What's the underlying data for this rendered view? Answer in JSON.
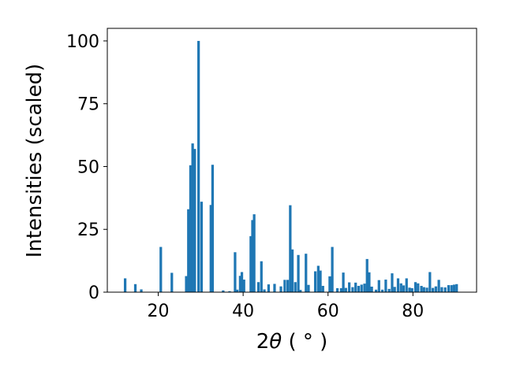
{
  "chart_data": {
    "type": "bar",
    "xlabel_main": "2",
    "xlabel_theta": "θ",
    "xlabel_unit": " ( ° )",
    "ylabel": "Intensities (scaled)",
    "xlim": [
      8,
      95
    ],
    "ylim": [
      0,
      105
    ],
    "xticks": [
      20,
      40,
      60,
      80
    ],
    "yticks": [
      0,
      25,
      50,
      75,
      100
    ],
    "grid": false,
    "bar_width": 0.6,
    "color": "#1f77b4",
    "x": [
      12.2,
      14.6,
      16.0,
      20.6,
      23.2,
      26.6,
      27.1,
      27.6,
      28.1,
      28.6,
      29.5,
      30.2,
      32.4,
      32.8,
      35.3,
      36.8,
      38.1,
      38.6,
      39.3,
      39.7,
      40.2,
      41.8,
      42.2,
      42.6,
      43.6,
      44.3,
      45.0,
      46.0,
      47.4,
      48.9,
      49.8,
      50.5,
      51.1,
      51.6,
      52.3,
      53.0,
      53.5,
      54.8,
      55.4,
      57.0,
      57.7,
      58.2,
      58.8,
      60.4,
      61.0,
      62.2,
      63.1,
      63.6,
      64.2,
      65.0,
      65.8,
      66.5,
      67.2,
      67.9,
      68.6,
      69.2,
      69.7,
      70.3,
      71.3,
      72.0,
      72.8,
      73.6,
      74.4,
      75.1,
      75.7,
      76.5,
      77.2,
      77.8,
      78.5,
      79.2,
      79.8,
      80.6,
      81.2,
      82.0,
      82.6,
      83.3,
      84.0,
      84.7,
      85.4,
      86.1,
      86.8,
      87.6,
      88.4,
      89.1,
      89.7,
      90.3
    ],
    "values": [
      5.5,
      3.2,
      1.1,
      18.0,
      7.7,
      6.4,
      33.0,
      50.5,
      59.2,
      57.0,
      100.0,
      36.0,
      34.7,
      50.7,
      0.7,
      0.4,
      15.9,
      1.0,
      6.5,
      8.0,
      5.0,
      22.3,
      28.7,
      31.0,
      4.0,
      12.3,
      1.1,
      3.1,
      3.3,
      2.3,
      4.9,
      4.9,
      34.6,
      17.0,
      4.0,
      14.8,
      0.9,
      15.3,
      2.9,
      8.3,
      10.5,
      8.6,
      2.5,
      6.3,
      18.0,
      1.6,
      1.6,
      7.8,
      1.7,
      3.9,
      2.0,
      3.8,
      2.5,
      3.0,
      3.4,
      13.2,
      7.9,
      2.2,
      1.0,
      4.8,
      1.0,
      5.0,
      1.3,
      7.5,
      2.1,
      5.5,
      3.5,
      2.7,
      5.5,
      1.8,
      1.6,
      4.0,
      3.5,
      2.5,
      2.0,
      1.8,
      8.0,
      1.7,
      2.3,
      4.9,
      2.0,
      1.9,
      2.8,
      2.8,
      3.0,
      3.2
    ]
  }
}
